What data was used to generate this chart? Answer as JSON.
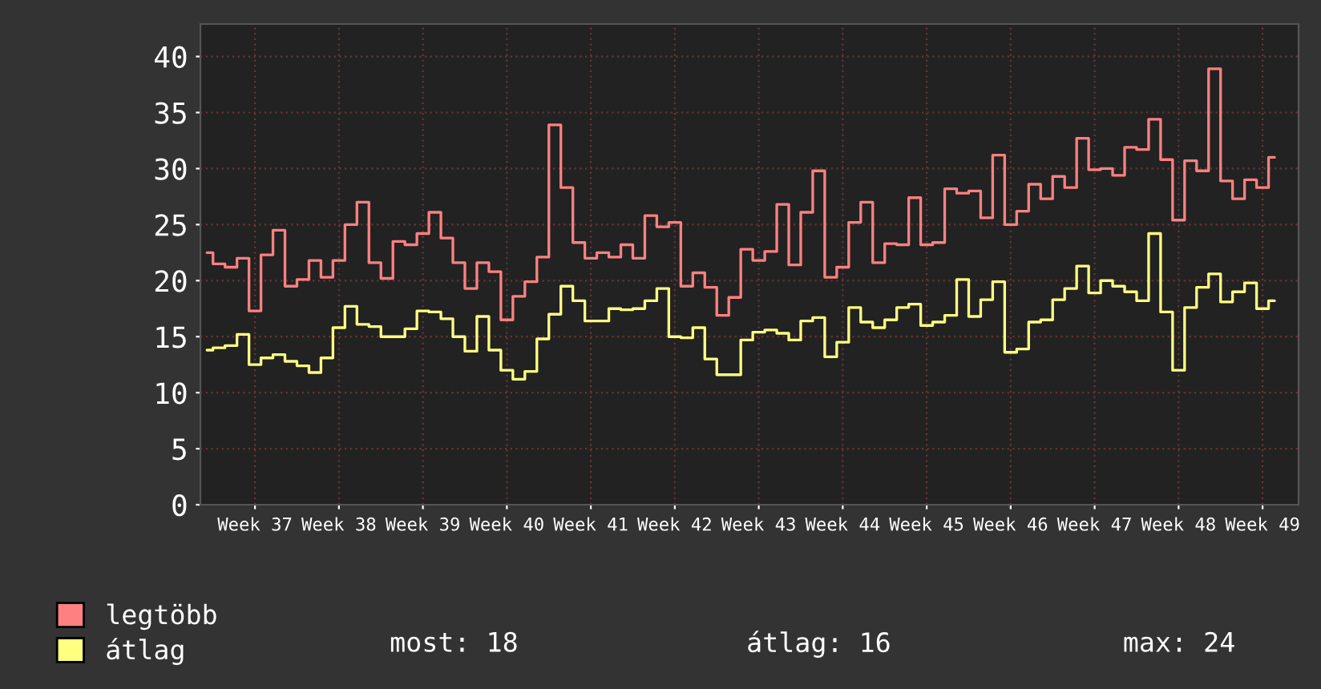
{
  "chart_data": {
    "type": "step",
    "categories": [
      null,
      null,
      null,
      null,
      "Week 37",
      null,
      null,
      null,
      null,
      null,
      null,
      "Week 38",
      null,
      null,
      null,
      null,
      null,
      null,
      "Week 39",
      null,
      null,
      null,
      null,
      null,
      null,
      "Week 40",
      null,
      null,
      null,
      null,
      null,
      null,
      "Week 41",
      null,
      null,
      null,
      null,
      null,
      null,
      "Week 42",
      null,
      null,
      null,
      null,
      null,
      null,
      "Week 43",
      null,
      null,
      null,
      null,
      null,
      null,
      "Week 44",
      null,
      null,
      null,
      null,
      null,
      null,
      "Week 45",
      null,
      null,
      null,
      null,
      null,
      null,
      "Week 46",
      null,
      null,
      null,
      null,
      null,
      null,
      "Week 47",
      null,
      null,
      null,
      null,
      null,
      null,
      "Week 48",
      null,
      null,
      null,
      null,
      null,
      null,
      "Week 49",
      null
    ],
    "series": [
      {
        "name": "legtöbb",
        "color": "#ff8080",
        "values": [
          22.5,
          21.5,
          21.2,
          22.0,
          17.3,
          22.3,
          24.5,
          19.5,
          20.1,
          21.8,
          20.3,
          21.8,
          25.0,
          27.0,
          21.6,
          20.2,
          23.5,
          23.2,
          24.2,
          26.1,
          23.8,
          21.6,
          19.3,
          21.6,
          20.8,
          16.5,
          18.6,
          19.9,
          22.1,
          33.9,
          28.3,
          23.4,
          22.0,
          22.5,
          22.1,
          23.2,
          22.0,
          25.8,
          24.8,
          25.2,
          19.5,
          20.7,
          19.4,
          16.9,
          18.5,
          22.8,
          21.8,
          22.6,
          26.8,
          21.4,
          26.1,
          29.8,
          20.3,
          21.2,
          25.2,
          27.0,
          21.6,
          23.3,
          23.2,
          27.4,
          23.2,
          23.4,
          28.2,
          27.8,
          28.0,
          25.6,
          31.2,
          25.0,
          26.2,
          28.6,
          27.3,
          29.3,
          28.3,
          32.7,
          29.9,
          30.0,
          29.4,
          31.9,
          31.7,
          34.4,
          30.8,
          25.4,
          30.7,
          29.8,
          38.9,
          28.9,
          27.3,
          29.0,
          28.3,
          31.0
        ]
      },
      {
        "name": "átlag",
        "color": "#ffff80",
        "values": [
          13.8,
          14.0,
          14.2,
          15.2,
          12.5,
          13.1,
          13.4,
          12.8,
          12.4,
          11.8,
          13.1,
          15.8,
          17.7,
          16.1,
          15.9,
          15.0,
          15.0,
          15.7,
          17.3,
          17.2,
          16.6,
          15.0,
          13.7,
          16.8,
          13.8,
          12.0,
          11.2,
          11.9,
          14.8,
          17.0,
          19.5,
          18.2,
          16.4,
          16.4,
          17.5,
          17.4,
          17.5,
          18.2,
          19.3,
          15.0,
          14.9,
          15.8,
          13.0,
          11.6,
          11.6,
          14.7,
          15.4,
          15.6,
          15.3,
          14.7,
          16.4,
          16.7,
          13.2,
          14.5,
          17.6,
          16.3,
          15.8,
          16.5,
          17.6,
          17.9,
          16.0,
          16.3,
          16.9,
          20.1,
          16.8,
          18.3,
          19.9,
          13.6,
          13.9,
          16.3,
          16.5,
          18.3,
          19.3,
          21.3,
          18.9,
          20.0,
          19.5,
          19.0,
          18.2,
          24.2,
          17.2,
          12.0,
          17.6,
          19.4,
          20.6,
          18.1,
          19.0,
          19.8,
          17.5,
          18.2
        ]
      }
    ],
    "ylim": [
      0,
      42.9
    ],
    "yticks": [
      0,
      5,
      10,
      15,
      20,
      25,
      30,
      35,
      40
    ],
    "grid": true,
    "legend": "bottom left",
    "annotations": [
      "most: 18",
      "átlag: 16",
      "max: 24"
    ]
  }
}
